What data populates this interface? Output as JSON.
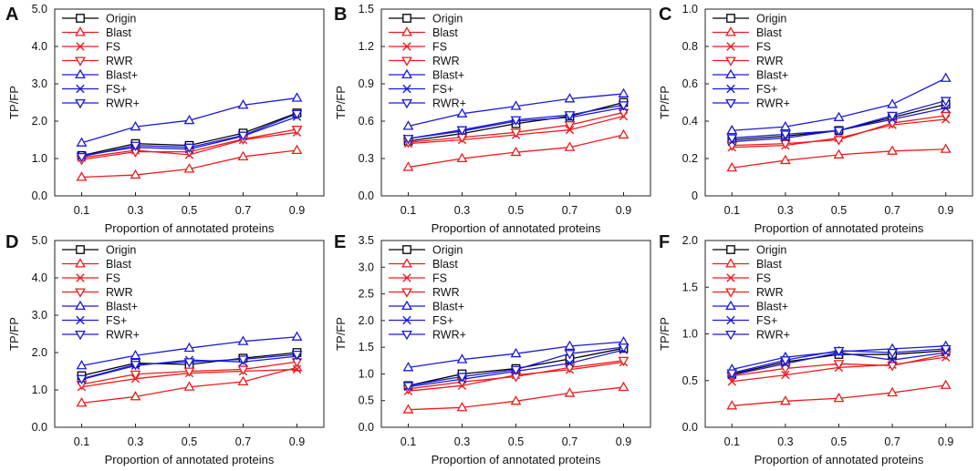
{
  "figure": {
    "legend_entries": [
      {
        "name": "Origin",
        "color": "#000000",
        "marker": "square"
      },
      {
        "name": "Blast",
        "color": "#ee1c1c",
        "marker": "triangle-up"
      },
      {
        "name": "FS",
        "color": "#ee1c1c",
        "marker": "x"
      },
      {
        "name": "RWR",
        "color": "#ee1c1c",
        "marker": "triangle-down"
      },
      {
        "name": "Blast+",
        "color": "#1a1adb",
        "marker": "triangle-up"
      },
      {
        "name": "FS+",
        "color": "#1a1adb",
        "marker": "x"
      },
      {
        "name": "RWR+",
        "color": "#1a1adb",
        "marker": "triangle-down"
      }
    ]
  },
  "chart_data": [
    {
      "panel": "A",
      "type": "line",
      "xlabel": "Proportion of annotated proteins",
      "ylabel": "TP/FP",
      "x": [
        "0.1",
        "0.3",
        "0.5",
        "0.7",
        "0.9"
      ],
      "ylim": [
        0,
        5
      ],
      "yticks": [
        "0.0",
        "1.0",
        "2.0",
        "3.0",
        "4.0",
        "5.0"
      ],
      "series": [
        {
          "name": "Origin",
          "values": [
            1.08,
            1.4,
            1.35,
            1.68,
            2.22
          ]
        },
        {
          "name": "Blast",
          "values": [
            0.5,
            0.56,
            0.72,
            1.05,
            1.22
          ]
        },
        {
          "name": "FS",
          "values": [
            1.02,
            1.22,
            1.1,
            1.5,
            1.7
          ]
        },
        {
          "name": "RWR",
          "values": [
            0.97,
            1.18,
            1.18,
            1.52,
            1.78
          ]
        },
        {
          "name": "Blast+",
          "values": [
            1.42,
            1.85,
            2.02,
            2.43,
            2.62
          ]
        },
        {
          "name": "FS+",
          "values": [
            1.08,
            1.3,
            1.25,
            1.6,
            2.12
          ]
        },
        {
          "name": "RWR+",
          "values": [
            1.05,
            1.35,
            1.3,
            1.62,
            2.2
          ]
        }
      ]
    },
    {
      "panel": "B",
      "type": "line",
      "xlabel": "Proportion of annotated proteins",
      "ylabel": "TP/FP",
      "x": [
        "0.1",
        "0.3",
        "0.5",
        "0.7",
        "0.9"
      ],
      "ylim": [
        0,
        1.5
      ],
      "yticks": [
        "0.0",
        "0.3",
        "0.6",
        "0.9",
        "1.2",
        "1.5"
      ],
      "series": [
        {
          "name": "Origin",
          "values": [
            0.44,
            0.5,
            0.58,
            0.64,
            0.75
          ]
        },
        {
          "name": "Blast",
          "values": [
            0.23,
            0.3,
            0.35,
            0.39,
            0.49
          ]
        },
        {
          "name": "FS",
          "values": [
            0.42,
            0.45,
            0.49,
            0.53,
            0.64
          ]
        },
        {
          "name": "RWR",
          "values": [
            0.43,
            0.47,
            0.51,
            0.57,
            0.67
          ]
        },
        {
          "name": "Blast+",
          "values": [
            0.56,
            0.66,
            0.72,
            0.78,
            0.82
          ]
        },
        {
          "name": "FS+",
          "values": [
            0.46,
            0.52,
            0.6,
            0.63,
            0.71
          ]
        },
        {
          "name": "RWR+",
          "values": [
            0.46,
            0.53,
            0.61,
            0.65,
            0.73
          ]
        }
      ]
    },
    {
      "panel": "C",
      "type": "line",
      "xlabel": "Proportion of annotated proteins",
      "ylabel": "TP/FP",
      "x": [
        "0.1",
        "0.3",
        "0.5",
        "0.7",
        "0.9"
      ],
      "ylim": [
        0,
        1.0
      ],
      "yticks": [
        "0",
        "0.2",
        "0.4",
        "0.6",
        "0.8",
        "1.0"
      ],
      "series": [
        {
          "name": "Origin",
          "values": [
            0.3,
            0.32,
            0.35,
            0.42,
            0.49
          ]
        },
        {
          "name": "Blast",
          "values": [
            0.15,
            0.19,
            0.22,
            0.24,
            0.25
          ]
        },
        {
          "name": "FS",
          "values": [
            0.26,
            0.27,
            0.31,
            0.38,
            0.41
          ]
        },
        {
          "name": "RWR",
          "values": [
            0.27,
            0.28,
            0.3,
            0.39,
            0.43
          ]
        },
        {
          "name": "Blast+",
          "values": [
            0.35,
            0.37,
            0.42,
            0.49,
            0.63
          ]
        },
        {
          "name": "FS+",
          "values": [
            0.29,
            0.31,
            0.35,
            0.41,
            0.47
          ]
        },
        {
          "name": "RWR+",
          "values": [
            0.31,
            0.33,
            0.35,
            0.43,
            0.51
          ]
        }
      ]
    },
    {
      "panel": "D",
      "type": "line",
      "xlabel": "Proportion of annotated proteins",
      "ylabel": "TP/FP",
      "x": [
        "0.1",
        "0.3",
        "0.5",
        "0.7",
        "0.9"
      ],
      "ylim": [
        0,
        5
      ],
      "yticks": [
        "0.0",
        "1.0",
        "2.0",
        "3.0",
        "4.0",
        "5.0"
      ],
      "series": [
        {
          "name": "Origin",
          "values": [
            1.38,
            1.72,
            1.68,
            1.85,
            2.0
          ]
        },
        {
          "name": "Blast",
          "values": [
            0.65,
            0.82,
            1.08,
            1.22,
            1.6
          ]
        },
        {
          "name": "FS",
          "values": [
            1.08,
            1.3,
            1.45,
            1.5,
            1.55
          ]
        },
        {
          "name": "RWR",
          "values": [
            1.15,
            1.42,
            1.5,
            1.55,
            1.75
          ]
        },
        {
          "name": "Blast+",
          "values": [
            1.65,
            1.92,
            2.12,
            2.3,
            2.42
          ]
        },
        {
          "name": "FS+",
          "values": [
            1.28,
            1.65,
            1.8,
            1.75,
            1.9
          ]
        },
        {
          "name": "RWR+",
          "values": [
            1.3,
            1.68,
            1.75,
            1.82,
            1.95
          ]
        }
      ]
    },
    {
      "panel": "E",
      "type": "line",
      "xlabel": "Proportion of annotated proteins",
      "ylabel": "TP/FP",
      "x": [
        "0.1",
        "0.3",
        "0.5",
        "0.7",
        "0.9"
      ],
      "ylim": [
        0,
        3.5
      ],
      "yticks": [
        "0.0",
        "0.5",
        "1.0",
        "1.5",
        "2.0",
        "2.5",
        "3.0",
        "3.5"
      ],
      "series": [
        {
          "name": "Origin",
          "values": [
            0.78,
            1.0,
            1.1,
            1.28,
            1.48
          ]
        },
        {
          "name": "Blast",
          "values": [
            0.33,
            0.37,
            0.49,
            0.64,
            0.75
          ]
        },
        {
          "name": "FS",
          "values": [
            0.68,
            0.78,
            0.98,
            1.08,
            1.22
          ]
        },
        {
          "name": "RWR",
          "values": [
            0.72,
            0.85,
            0.95,
            1.12,
            1.25
          ]
        },
        {
          "name": "Blast+",
          "values": [
            1.12,
            1.27,
            1.38,
            1.52,
            1.6
          ]
        },
        {
          "name": "FS+",
          "values": [
            0.76,
            0.9,
            1.05,
            1.2,
            1.45
          ]
        },
        {
          "name": "RWR+",
          "values": [
            0.78,
            0.95,
            1.08,
            1.38,
            1.5
          ]
        }
      ]
    },
    {
      "panel": "F",
      "type": "line",
      "xlabel": "Proportion of annotated proteins",
      "ylabel": "TP/FP",
      "x": [
        "0.1",
        "0.3",
        "0.5",
        "0.7",
        "0.9"
      ],
      "ylim": [
        0,
        2.0
      ],
      "yticks": [
        "0.0",
        "0.5",
        "1.0",
        "1.5",
        "2.0"
      ],
      "series": [
        {
          "name": "Origin",
          "values": [
            0.57,
            0.7,
            0.78,
            0.78,
            0.82
          ]
        },
        {
          "name": "Blast",
          "values": [
            0.23,
            0.28,
            0.31,
            0.37,
            0.45
          ]
        },
        {
          "name": "FS",
          "values": [
            0.49,
            0.56,
            0.64,
            0.67,
            0.75
          ]
        },
        {
          "name": "RWR",
          "values": [
            0.55,
            0.63,
            0.68,
            0.66,
            0.78
          ]
        },
        {
          "name": "Blast+",
          "values": [
            0.62,
            0.75,
            0.81,
            0.84,
            0.87
          ]
        },
        {
          "name": "FS+",
          "values": [
            0.56,
            0.68,
            0.8,
            0.72,
            0.8
          ]
        },
        {
          "name": "RWR+",
          "values": [
            0.58,
            0.72,
            0.82,
            0.8,
            0.84
          ]
        }
      ]
    }
  ]
}
